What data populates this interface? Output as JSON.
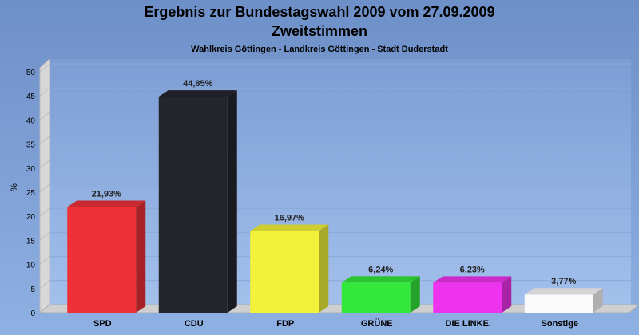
{
  "chart_data": {
    "type": "bar",
    "title": "Ergebnis zur Bundestagswahl 2009 vom 27.09.2009",
    "title_line2": "Zweitstimmen",
    "subtitle": "Wahlkreis Göttingen - Landkreis Göttingen - Stadt Duderstadt",
    "ylabel": "%",
    "ylim": [
      0,
      50
    ],
    "yticks": [
      0,
      5,
      10,
      15,
      20,
      25,
      30,
      35,
      40,
      45,
      50
    ],
    "grid": true,
    "categories": [
      "SPD",
      "CDU",
      "FDP",
      "GRÜNE",
      "DIE LINKE.",
      "Sonstige"
    ],
    "values": [
      21.93,
      44.85,
      16.97,
      6.24,
      6.23,
      3.77
    ],
    "value_labels": [
      "21,93%",
      "44,85%",
      "16,97%",
      "6,24%",
      "6,23%",
      "3,77%"
    ],
    "colors": [
      "#ee3038",
      "#24262e",
      "#f2f23a",
      "#33e83a",
      "#ee33ee",
      "#fafafa"
    ]
  }
}
